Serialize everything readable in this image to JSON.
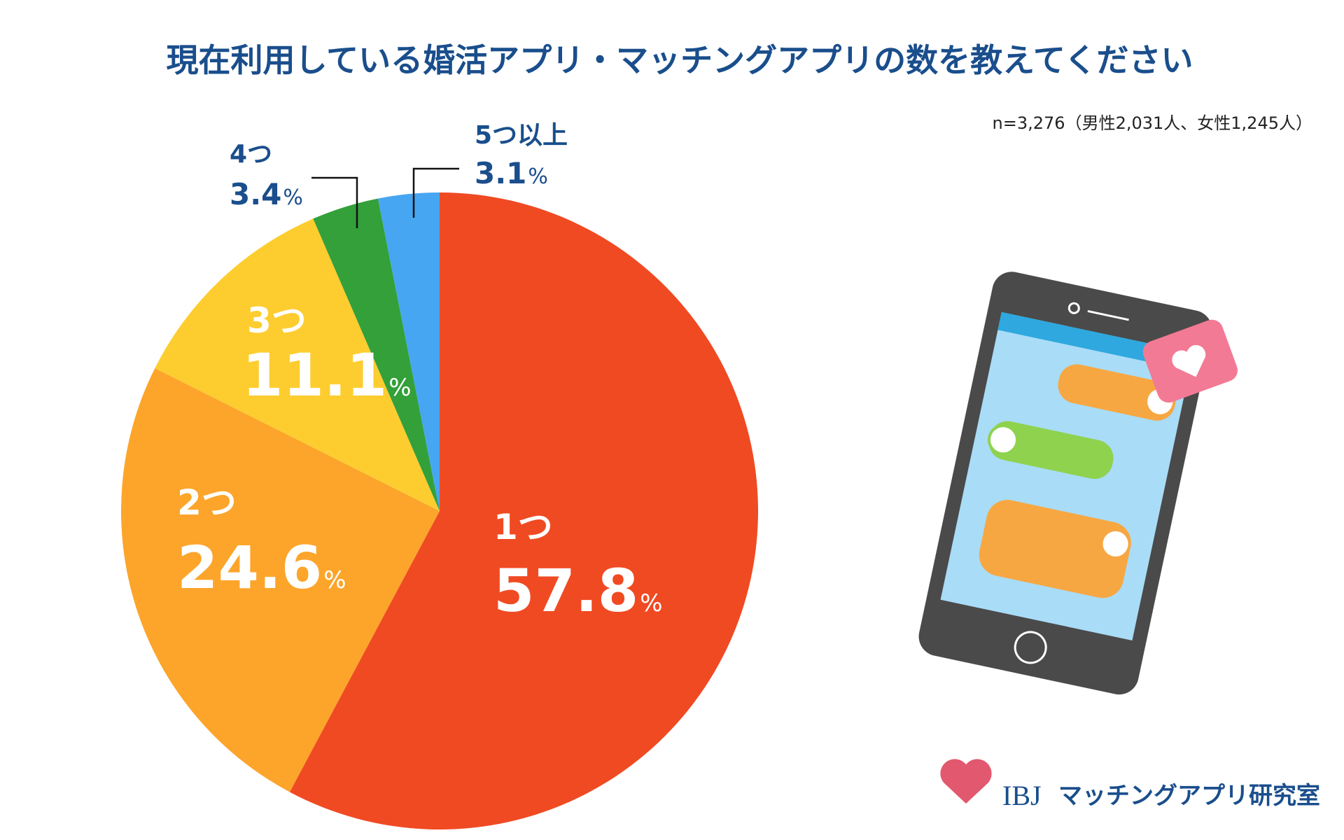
{
  "chart_data": {
    "type": "pie",
    "title": "現在利用している婚活アプリ・マッチングアプリの数を教えてください",
    "note": "n=3,276（男性2,031人、女性1,245人）",
    "categories": [
      "1つ",
      "2つ",
      "3つ",
      "4つ",
      "5つ以上"
    ],
    "values": [
      57.8,
      24.6,
      11.1,
      3.4,
      3.1
    ],
    "unit": "%",
    "colors": [
      "#f04a23",
      "#fca52a",
      "#fdcd30",
      "#33a03a",
      "#47a6f1"
    ]
  },
  "logo": {
    "mark": "IBJ",
    "text": "マッチングアプリ研究室"
  }
}
